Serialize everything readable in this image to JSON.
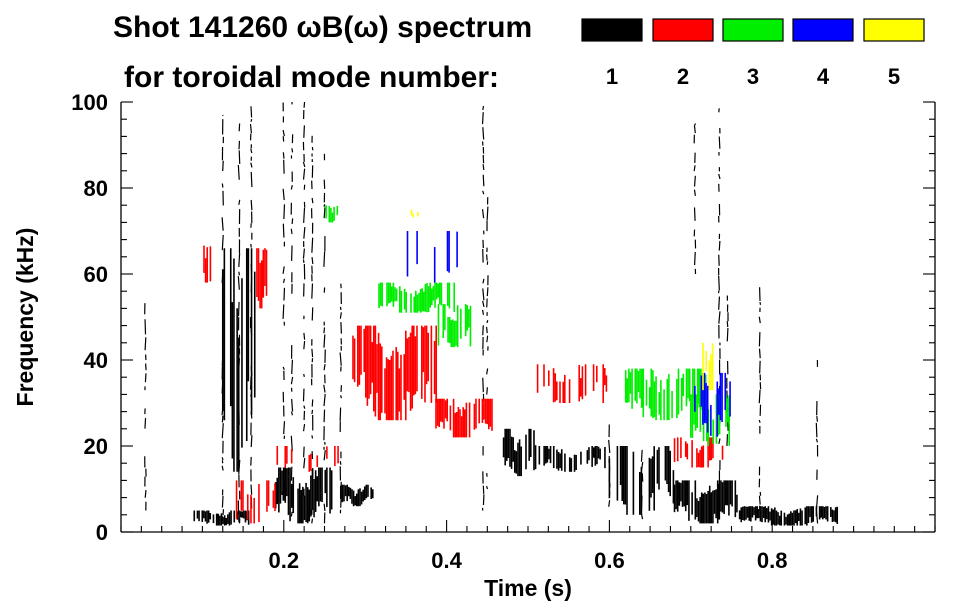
{
  "chart_data": {
    "type": "spectrogram",
    "title_line1": "Shot 141260 ωB(ω) spectrum",
    "title_line2": "for toroidal mode number:",
    "xlabel": "Time (s)",
    "ylabel": "Frequency (kHz)",
    "xlim": [
      0.0,
      1.0
    ],
    "ylim": [
      0,
      100
    ],
    "x_major_ticks": [
      0.2,
      0.4,
      0.6,
      0.8
    ],
    "x_tick_labels": [
      "0.2",
      "0.4",
      "0.6",
      "0.8"
    ],
    "x_minor_step": 0.025,
    "y_major_ticks": [
      0,
      20,
      40,
      60,
      80,
      100
    ],
    "y_tick_labels": [
      "0",
      "20",
      "40",
      "60",
      "80",
      "100"
    ],
    "y_minor_step": 4,
    "legend": {
      "placement": "top-right",
      "entries": [
        {
          "mode": "1",
          "color": "#000000"
        },
        {
          "mode": "2",
          "color": "#ff0000"
        },
        {
          "mode": "3",
          "color": "#00ee00"
        },
        {
          "mode": "4",
          "color": "#0000ff"
        },
        {
          "mode": "5",
          "color": "#ffff00"
        }
      ]
    },
    "blobs": [
      {
        "mode": "1",
        "t0": 0.125,
        "t1": 0.165,
        "f0": 14,
        "f1": 66,
        "density": 0.55
      },
      {
        "mode": "1",
        "t0": 0.19,
        "t1": 0.26,
        "f0": 2,
        "f1": 15,
        "density": 0.9
      },
      {
        "mode": "1",
        "t0": 0.27,
        "t1": 0.31,
        "f0": 6,
        "f1": 11,
        "density": 0.85
      },
      {
        "mode": "1",
        "t0": 0.09,
        "t1": 0.16,
        "f0": 1.5,
        "f1": 5,
        "density": 0.8
      },
      {
        "mode": "1",
        "t0": 0.47,
        "t1": 0.51,
        "f0": 13,
        "f1": 24,
        "density": 0.7
      },
      {
        "mode": "1",
        "t0": 0.51,
        "t1": 0.6,
        "f0": 14,
        "f1": 20,
        "density": 0.5
      },
      {
        "mode": "1",
        "t0": 0.68,
        "t1": 0.76,
        "f0": 2,
        "f1": 12,
        "density": 0.9
      },
      {
        "mode": "1",
        "t0": 0.76,
        "t1": 0.88,
        "f0": 1.5,
        "f1": 6,
        "density": 0.9
      },
      {
        "mode": "1",
        "t0": 0.6,
        "t1": 0.68,
        "f0": 4,
        "f1": 20,
        "density": 0.35
      },
      {
        "mode": "2",
        "t0": 0.285,
        "t1": 0.39,
        "f0": 26,
        "f1": 48,
        "density": 0.85
      },
      {
        "mode": "2",
        "t0": 0.385,
        "t1": 0.46,
        "f0": 22,
        "f1": 31,
        "density": 0.6
      },
      {
        "mode": "2",
        "t0": 0.1,
        "t1": 0.11,
        "f0": 58,
        "f1": 67,
        "density": 0.8
      },
      {
        "mode": "2",
        "t0": 0.165,
        "t1": 0.18,
        "f0": 52,
        "f1": 66,
        "density": 0.8
      },
      {
        "mode": "2",
        "t0": 0.19,
        "t1": 0.27,
        "f0": 14,
        "f1": 20,
        "density": 0.4
      },
      {
        "mode": "2",
        "t0": 0.14,
        "t1": 0.19,
        "f0": 2,
        "f1": 12,
        "density": 0.45
      },
      {
        "mode": "2",
        "t0": 0.68,
        "t1": 0.74,
        "f0": 15,
        "f1": 22,
        "density": 0.5
      },
      {
        "mode": "2",
        "t0": 0.5,
        "t1": 0.6,
        "f0": 30,
        "f1": 39,
        "density": 0.3
      },
      {
        "mode": "3",
        "t0": 0.315,
        "t1": 0.41,
        "f0": 51,
        "f1": 58,
        "density": 0.75
      },
      {
        "mode": "3",
        "t0": 0.39,
        "t1": 0.43,
        "f0": 43,
        "f1": 53,
        "density": 0.7
      },
      {
        "mode": "3",
        "t0": 0.62,
        "t1": 0.72,
        "f0": 26,
        "f1": 38,
        "density": 0.8
      },
      {
        "mode": "3",
        "t0": 0.7,
        "t1": 0.75,
        "f0": 20,
        "f1": 32,
        "density": 0.55
      },
      {
        "mode": "3",
        "t0": 0.25,
        "t1": 0.27,
        "f0": 72,
        "f1": 76,
        "density": 0.5
      },
      {
        "mode": "4",
        "t0": 0.705,
        "t1": 0.75,
        "f0": 22,
        "f1": 37,
        "density": 0.45
      },
      {
        "mode": "4",
        "t0": 0.35,
        "t1": 0.42,
        "f0": 58,
        "f1": 70,
        "density": 0.2
      },
      {
        "mode": "5",
        "t0": 0.715,
        "t1": 0.735,
        "f0": 33,
        "f1": 44,
        "density": 0.5
      },
      {
        "mode": "5",
        "t0": 0.355,
        "t1": 0.365,
        "f0": 73,
        "f1": 75,
        "density": 0.5
      }
    ],
    "vertical_streaks": [
      {
        "mode": "1",
        "t": 0.03,
        "f0": 5,
        "f1": 55
      },
      {
        "mode": "1",
        "t": 0.125,
        "f0": 2,
        "f1": 97
      },
      {
        "mode": "1",
        "t": 0.145,
        "f0": 2,
        "f1": 95
      },
      {
        "mode": "1",
        "t": 0.16,
        "f0": 2,
        "f1": 99
      },
      {
        "mode": "1",
        "t": 0.2,
        "f0": 2,
        "f1": 100
      },
      {
        "mode": "1",
        "t": 0.21,
        "f0": 2,
        "f1": 100
      },
      {
        "mode": "1",
        "t": 0.225,
        "f0": 2,
        "f1": 100
      },
      {
        "mode": "1",
        "t": 0.235,
        "f0": 2,
        "f1": 95
      },
      {
        "mode": "1",
        "t": 0.25,
        "f0": 2,
        "f1": 90
      },
      {
        "mode": "1",
        "t": 0.27,
        "f0": 2,
        "f1": 60
      },
      {
        "mode": "1",
        "t": 0.445,
        "f0": 5,
        "f1": 100
      },
      {
        "mode": "1",
        "t": 0.45,
        "f0": 10,
        "f1": 78
      },
      {
        "mode": "1",
        "t": 0.735,
        "f0": 8,
        "f1": 99
      },
      {
        "mode": "1",
        "t": 0.705,
        "f0": 60,
        "f1": 95
      },
      {
        "mode": "1",
        "t": 0.745,
        "f0": 20,
        "f1": 55
      },
      {
        "mode": "1",
        "t": 0.785,
        "f0": 5,
        "f1": 60
      },
      {
        "mode": "1",
        "t": 0.855,
        "f0": 2,
        "f1": 40
      },
      {
        "mode": "1",
        "t": 0.64,
        "f0": 3,
        "f1": 30
      },
      {
        "mode": "1",
        "t": 0.6,
        "f0": 3,
        "f1": 25
      }
    ]
  }
}
